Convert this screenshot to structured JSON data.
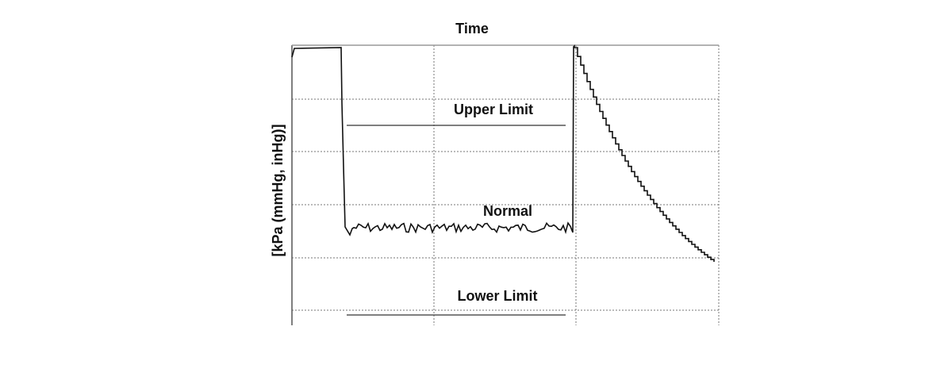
{
  "title": "Time",
  "y_axis_label": "[kPa (mmHg, inHg)]",
  "labels": {
    "upper": "Upper Limit",
    "normal": "Normal",
    "lower": "Lower Limit"
  }
}
